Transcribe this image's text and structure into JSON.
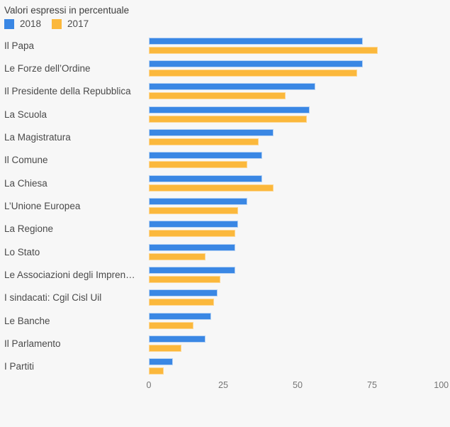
{
  "title": "Valori espressi in percentuale",
  "legend": {
    "items": [
      {
        "label": "2018",
        "color": "#3a87e4"
      },
      {
        "label": "2017",
        "color": "#fbb83c"
      }
    ]
  },
  "colors": {
    "background": "#f7f7f7",
    "series_2018_fill": "#3a87e4",
    "series_2018_border": "#b9d4f4",
    "series_2017_fill": "#fbb83c",
    "series_2017_border": "#fdd794",
    "label_text": "#4a4a4a",
    "tick_text": "#757575"
  },
  "chart_data": {
    "type": "bar",
    "orientation": "horizontal",
    "title": "Valori espressi in percentuale",
    "xlabel": "",
    "ylabel": "",
    "xlim": [
      0,
      100
    ],
    "x_ticks": [
      0,
      25,
      50,
      75,
      100
    ],
    "grid": false,
    "legend_position": "top-left",
    "categories": [
      "Il Papa",
      "Le Forze dell’Ordine",
      "Il Presidente della Repubblica",
      "La Scuola",
      "La Magistratura",
      "Il Comune",
      "La Chiesa",
      "L’Unione Europea",
      "La Regione",
      "Lo Stato",
      "Le Associazioni degli Impren…",
      "I sindacati: Cgil Cisl Uil",
      "Le Banche",
      "Il Parlamento",
      "I Partiti"
    ],
    "series": [
      {
        "name": "2018",
        "color": "#3a87e4",
        "border_color": "#b9d4f4",
        "values": [
          72,
          72,
          56,
          54,
          42,
          38,
          38,
          33,
          30,
          29,
          29,
          23,
          21,
          19,
          8
        ]
      },
      {
        "name": "2017",
        "color": "#fbb83c",
        "border_color": "#fdd794",
        "values": [
          77,
          70,
          46,
          53,
          37,
          33,
          42,
          30,
          29,
          19,
          24,
          22,
          15,
          11,
          5
        ]
      }
    ]
  }
}
